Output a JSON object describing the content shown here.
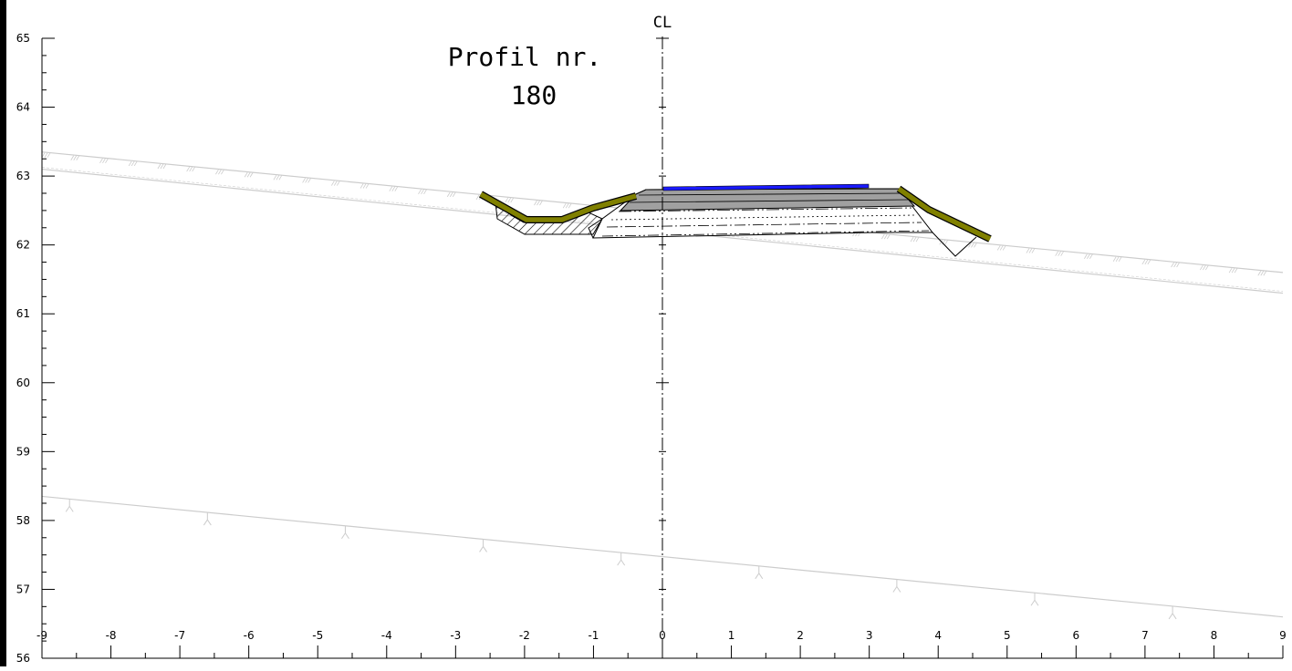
{
  "profile": {
    "title_line1": "Profil nr.",
    "title_line2": "180",
    "centerline_label": "CL"
  },
  "axes": {
    "y_ticks": [
      "65",
      "64",
      "63",
      "62",
      "61",
      "60",
      "59",
      "58",
      "57",
      "56"
    ],
    "x_ticks": [
      "-9",
      "-8",
      "-7",
      "-6",
      "-5",
      "-4",
      "-3",
      "-2",
      "-1",
      "0",
      "1",
      "2",
      "3",
      "4",
      "5",
      "6",
      "7",
      "8",
      "9"
    ]
  },
  "chart_data": {
    "type": "line",
    "xlim": [
      -9,
      9
    ],
    "ylim": [
      56,
      65
    ],
    "grid": false,
    "series": [
      {
        "x": [
          -9,
          9
        ],
        "y": [
          63.35,
          61.6
        ]
      },
      {
        "x": [
          -9,
          9
        ],
        "y": [
          63.1,
          61.3
        ]
      },
      {
        "x": [
          -9,
          9
        ],
        "y": [
          58.35,
          56.6
        ]
      }
    ]
  },
  "colors": {
    "wearing_course": "#1a1aff",
    "topsoil": "#808000",
    "pavement_grey": "#a0a0a0",
    "terrain": "#cccccc"
  }
}
